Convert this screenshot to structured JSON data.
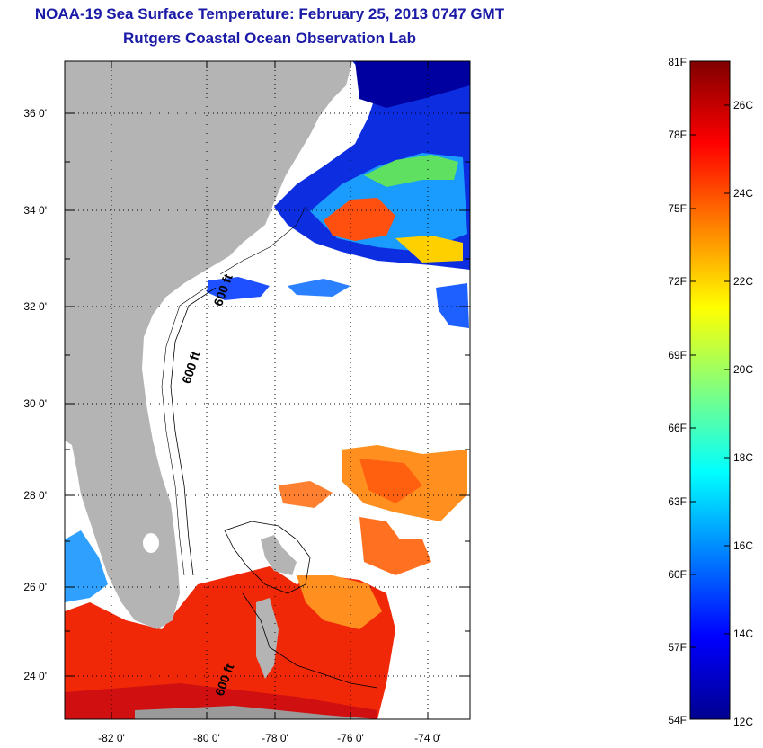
{
  "title": {
    "line1": "NOAA-19 Sea Surface Temperature:  February 25, 2013 0747 GMT",
    "line2": "Rutgers Coastal Ocean Observation Lab"
  },
  "map": {
    "lat_labels": [
      "36 0'",
      "34 0'",
      "32 0'",
      "30 0'",
      "28 0'",
      "26 0'",
      "24 0'"
    ],
    "lon_labels": [
      "-82 0'",
      "-80 0'",
      "-78 0'",
      "-76 0'",
      "-74 0'"
    ],
    "isobath_labels": [
      "600 ft",
      "600 ft",
      "600 ft"
    ],
    "colors": {
      "land": "#b4b4b4",
      "ocean_nodata": "#ffffff",
      "grid": "#000000"
    }
  },
  "colorbar": {
    "fahrenheit_labels": [
      "81F",
      "78F",
      "75F",
      "72F",
      "69F",
      "66F",
      "63F",
      "60F",
      "57F",
      "54F"
    ],
    "celsius_labels": [
      "26C",
      "24C",
      "22C",
      "20C",
      "18C",
      "16C",
      "14C",
      "12C"
    ],
    "colormap": [
      "#00008f",
      "#0000ff",
      "#0080ff",
      "#00ffff",
      "#80ff80",
      "#ffff00",
      "#ff8000",
      "#ff0000",
      "#800000"
    ]
  }
}
